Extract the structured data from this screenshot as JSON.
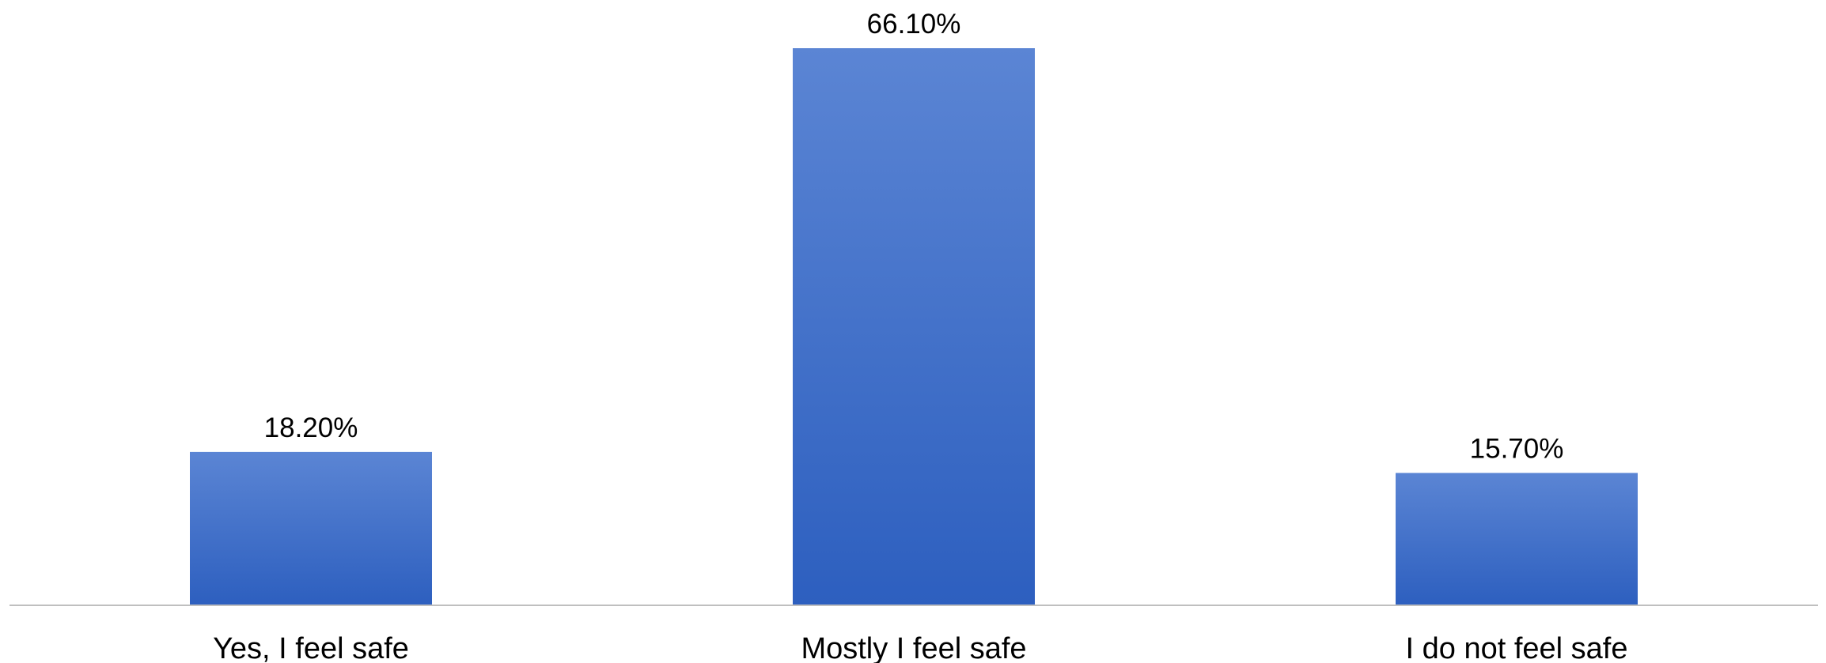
{
  "chart_data": {
    "type": "bar",
    "title": "",
    "xlabel": "",
    "ylabel": "",
    "categories": [
      "Yes, I feel safe",
      "Mostly I feel safe",
      "I do not feel safe"
    ],
    "values": [
      18.2,
      66.1,
      15.7
    ],
    "value_labels": [
      "18.20%",
      "66.10%",
      "15.70%"
    ],
    "ylim": [
      0,
      66.1
    ],
    "grid": false,
    "legend": "none",
    "colors": {
      "bar_top": "#5b85d4",
      "bar_bottom": "#2d5fbf",
      "axis": "#bfbfbf",
      "text": "#000000"
    }
  }
}
